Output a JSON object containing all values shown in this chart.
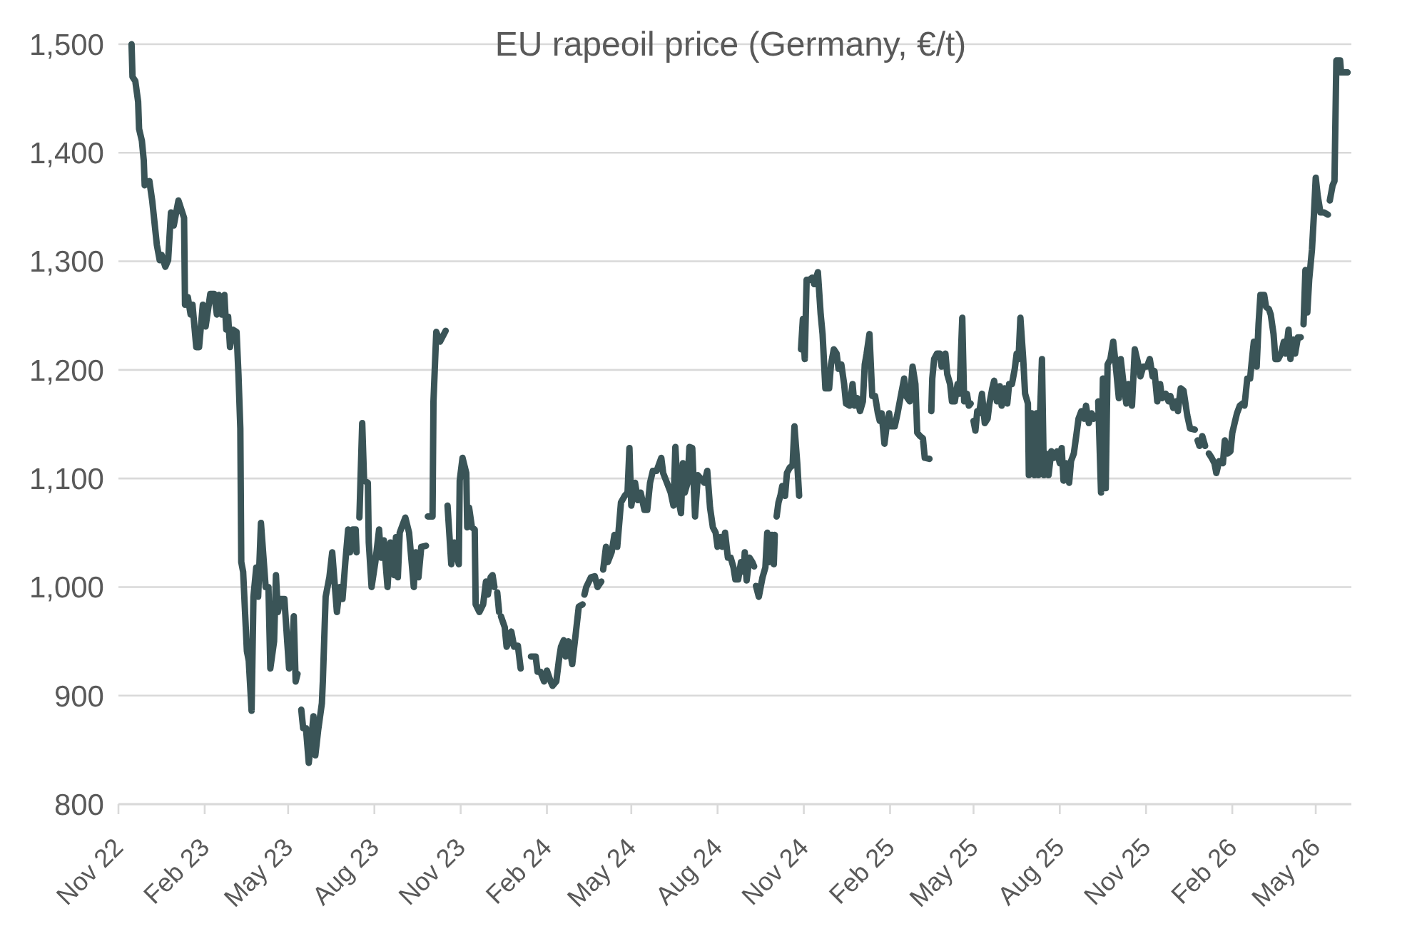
{
  "chart_data": {
    "type": "line",
    "title": "EU rapeoil price (Germany, €/t)",
    "color": "#3a5457",
    "grid": "y",
    "xlim": [
      "2022-11-01",
      "2026-06-08"
    ],
    "xticks": [
      {
        "value": "2022-11-01",
        "label": "Nov 22"
      },
      {
        "value": "2023-02-01",
        "label": "Feb 23"
      },
      {
        "value": "2023-05-01",
        "label": "May 23"
      },
      {
        "value": "2023-08-01",
        "label": "Aug 23"
      },
      {
        "value": "2023-11-01",
        "label": "Nov 23"
      },
      {
        "value": "2024-02-01",
        "label": "Feb 24"
      },
      {
        "value": "2024-05-01",
        "label": "May 24"
      },
      {
        "value": "2024-08-01",
        "label": "Aug 24"
      },
      {
        "value": "2024-11-01",
        "label": "Nov 24"
      },
      {
        "value": "2025-02-01",
        "label": "Feb 25"
      },
      {
        "value": "2025-05-01",
        "label": "May 25"
      },
      {
        "value": "2025-08-01",
        "label": "Aug 25"
      },
      {
        "value": "2025-11-01",
        "label": "Nov 25"
      },
      {
        "value": "2026-02-01",
        "label": "Feb 26"
      },
      {
        "value": "2026-05-01",
        "label": "May 26"
      }
    ],
    "ylim": [
      800,
      1500
    ],
    "yticks": [
      800,
      900,
      {
        "value": 1000,
        "label": "1,000"
      },
      {
        "value": 1100,
        "label": "1,100"
      },
      {
        "value": 1200,
        "label": "1,200"
      },
      {
        "value": 1300,
        "label": "1,300"
      },
      {
        "value": 1400,
        "label": "1,400"
      },
      {
        "value": 1500,
        "label": "1,500"
      }
    ],
    "x": [
      "2022-11-15",
      "2022-11-16",
      "2022-11-19",
      "2022-11-22",
      "2022-11-23",
      "2022-11-26",
      "2022-11-28",
      "2022-11-29",
      "2022-12-04",
      "2022-12-07",
      "2022-12-12",
      "2022-12-15",
      "2022-12-17",
      "2022-12-21",
      "2022-12-24",
      "2022-12-27",
      "2022-12-30",
      "2023-01-04",
      "2023-01-10",
      "2023-01-11",
      "2023-01-14",
      "2023-01-17",
      "2023-01-19",
      "2023-01-23",
      "2023-01-26",
      "2023-01-30",
      "2023-02-02",
      "2023-02-07",
      "2023-02-11",
      "2023-02-14",
      "2023-02-16",
      "2023-02-19",
      "2023-02-22",
      "2023-02-24",
      "2023-02-26",
      "2023-02-28",
      "2023-03-03",
      "2023-03-07",
      "2023-03-09",
      "2023-03-11",
      "2023-03-12",
      "2023-03-14",
      "2023-03-18",
      "2023-03-20",
      "2023-03-23",
      "2023-03-25",
      "2023-03-28",
      "2023-03-30",
      "2023-04-02",
      "2023-04-07",
      "2023-04-10",
      "2023-04-12",
      "2023-04-16",
      "2023-04-18",
      "2023-04-20",
      "2023-04-23",
      "2023-04-27",
      "2023-04-30",
      "2023-05-02",
      "2023-05-05",
      "2023-05-07",
      "2023-05-09",
      "2023-05-11",
      "2023-05-13",
      "2023-05-15",
      "2023-05-17",
      "2023-05-20",
      "2023-05-23",
      "2023-05-25",
      "2023-05-28",
      "2023-05-30",
      "2023-06-02",
      "2023-06-06",
      "2023-06-07",
      "2023-06-10",
      "2023-06-14",
      "2023-06-17",
      "2023-06-22",
      "2023-06-25",
      "2023-06-28",
      "2023-07-01",
      "2023-07-04",
      "2023-07-06",
      "2023-07-09",
      "2023-07-12",
      "2023-07-13",
      "2023-07-14",
      "2023-07-16",
      "2023-07-19",
      "2023-07-21",
      "2023-07-25",
      "2023-07-26",
      "2023-07-29",
      "2023-08-02",
      "2023-08-06",
      "2023-08-08",
      "2023-08-11",
      "2023-08-15",
      "2023-08-18",
      "2023-08-22",
      "2023-08-24",
      "2023-08-26",
      "2023-08-28",
      "2023-08-31",
      "2023-09-03",
      "2023-09-07",
      "2023-09-12",
      "2023-09-14",
      "2023-09-17",
      "2023-09-20",
      "2023-09-25",
      "2023-09-26",
      "2023-09-27",
      "2023-10-02",
      "2023-10-03",
      "2023-10-06",
      "2023-10-10",
      "2023-10-16",
      "2023-10-17",
      "2023-10-18",
      "2023-10-22",
      "2023-10-25",
      "2023-10-30",
      "2023-10-31",
      "2023-11-03",
      "2023-11-07",
      "2023-11-08",
      "2023-11-10",
      "2023-11-13",
      "2023-11-16",
      "2023-11-17",
      "2023-11-21",
      "2023-11-25",
      "2023-11-28",
      "2023-11-30",
      "2023-12-03",
      "2023-12-05",
      "2023-12-07",
      "2023-12-08",
      "2023-12-10",
      "2023-12-12",
      "2023-12-13",
      "2023-12-14",
      "2023-12-18",
      "2023-12-20",
      "2023-12-23",
      "2023-12-25",
      "2023-12-28",
      "2024-01-01",
      "2024-01-04",
      "2024-01-06",
      "2024-01-15",
      "2024-01-20",
      "2024-01-22",
      "2024-01-25",
      "2024-01-29",
      "2024-02-01",
      "2024-02-05",
      "2024-02-07",
      "2024-02-11",
      "2024-02-14",
      "2024-02-16",
      "2024-02-19",
      "2024-02-21",
      "2024-02-24",
      "2024-02-28",
      "2024-03-03",
      "2024-03-06",
      "2024-03-10",
      "2024-03-11",
      "2024-03-12",
      "2024-03-14",
      "2024-03-19",
      "2024-03-23",
      "2024-03-26",
      "2024-03-30",
      "2024-03-31",
      "2024-04-01",
      "2024-04-04",
      "2024-04-06",
      "2024-04-10",
      "2024-04-13",
      "2024-04-16",
      "2024-04-20",
      "2024-04-24",
      "2024-04-27",
      "2024-04-29",
      "2024-05-01",
      "2024-05-05",
      "2024-05-08",
      "2024-05-11",
      "2024-05-15",
      "2024-05-18",
      "2024-05-21",
      "2024-05-24",
      "2024-05-28",
      "2024-06-02",
      "2024-06-04",
      "2024-06-08",
      "2024-06-12",
      "2024-06-15",
      "2024-06-17",
      "2024-06-20",
      "2024-06-23",
      "2024-06-25",
      "2024-06-27",
      "2024-06-30",
      "2024-07-02",
      "2024-07-05",
      "2024-07-08",
      "2024-07-11",
      "2024-07-14",
      "2024-07-18",
      "2024-07-21",
      "2024-07-24",
      "2024-07-27",
      "2024-07-30",
      "2024-08-01",
      "2024-08-04",
      "2024-08-06",
      "2024-08-09",
      "2024-08-12",
      "2024-08-15",
      "2024-08-18",
      "2024-08-20",
      "2024-08-23",
      "2024-08-26",
      "2024-08-29",
      "2024-08-30",
      "2024-09-01",
      "2024-09-04",
      "2024-09-07",
      "2024-09-09",
      "2024-09-10",
      "2024-09-11",
      "2024-09-14",
      "2024-09-18",
      "2024-09-21",
      "2024-09-23",
      "2024-09-25",
      "2024-09-28",
      "2024-09-30",
      "2024-10-01",
      "2024-10-02",
      "2024-10-03",
      "2024-10-05",
      "2024-10-07",
      "2024-10-09",
      "2024-10-12",
      "2024-10-14",
      "2024-10-17",
      "2024-10-20",
      "2024-10-22",
      "2024-10-25",
      "2024-10-27",
      "2024-10-28",
      "2024-10-29",
      "2024-10-31",
      "2024-11-02",
      "2024-11-04",
      "2024-11-07",
      "2024-11-10",
      "2024-11-12",
      "2024-11-16",
      "2024-11-19",
      "2024-11-21",
      "2024-11-24",
      "2024-11-28",
      "2024-11-30",
      "2024-12-03",
      "2024-12-06",
      "2024-12-08",
      "2024-12-11",
      "2024-12-14",
      "2024-12-16",
      "2024-12-20",
      "2024-12-23",
      "2024-12-25",
      "2024-12-28",
      "2024-12-31",
      "2025-01-03",
      "2025-01-05",
      "2025-01-07",
      "2025-01-10",
      "2025-01-13",
      "2025-01-16",
      "2025-01-19",
      "2025-01-21",
      "2025-01-23",
      "2025-01-26",
      "2025-01-28",
      "2025-01-31",
      "2025-02-02",
      "2025-02-06",
      "2025-02-09",
      "2025-02-12",
      "2025-02-16",
      "2025-02-18",
      "2025-02-22",
      "2025-02-25",
      "2025-02-28",
      "2025-03-02",
      "2025-03-05",
      "2025-03-08",
      "2025-03-10",
      "2025-03-15",
      "2025-03-16",
      "2025-03-17",
      "2025-03-18",
      "2025-03-20",
      "2025-03-23",
      "2025-03-26",
      "2025-03-28",
      "2025-04-01",
      "2025-04-03",
      "2025-04-06",
      "2025-04-08",
      "2025-04-11",
      "2025-04-14",
      "2025-04-16",
      "2025-04-19",
      "2025-04-21",
      "2025-04-24",
      "2025-04-26",
      "2025-04-28",
      "2025-04-29",
      "2025-05-01",
      "2025-05-03",
      "2025-05-05",
      "2025-05-07",
      "2025-05-10",
      "2025-05-13",
      "2025-05-16",
      "2025-05-18",
      "2025-05-21",
      "2025-05-23",
      "2025-05-26",
      "2025-05-29",
      "2025-05-31",
      "2025-06-03",
      "2025-06-06",
      "2025-06-08",
      "2025-06-11",
      "2025-06-14",
      "2025-06-16",
      "2025-06-18",
      "2025-06-20",
      "2025-06-23",
      "2025-06-25",
      "2025-06-28",
      "2025-06-29",
      "2025-07-02",
      "2025-07-05",
      "2025-07-07",
      "2025-07-09",
      "2025-07-11",
      "2025-07-13",
      "2025-07-15",
      "2025-07-17",
      "2025-07-20",
      "2025-07-23",
      "2025-07-26",
      "2025-07-29",
      "2025-08-01",
      "2025-08-03",
      "2025-08-05",
      "2025-08-08",
      "2025-08-11",
      "2025-08-13",
      "2025-08-16",
      "2025-08-19",
      "2025-08-21",
      "2025-08-24",
      "2025-08-27",
      "2025-08-29",
      "2025-09-01",
      "2025-09-04",
      "2025-09-06",
      "2025-09-09",
      "2025-09-10",
      "2025-09-11",
      "2025-09-14",
      "2025-09-16",
      "2025-09-19",
      "2025-09-21",
      "2025-09-24",
      "2025-09-27",
      "2025-09-29",
      "2025-10-03",
      "2025-10-05",
      "2025-10-08",
      "2025-10-11",
      "2025-10-13",
      "2025-10-17",
      "2025-10-20",
      "2025-10-23",
      "2025-10-26",
      "2025-10-29",
      "2025-11-02",
      "2025-11-05",
      "2025-11-08",
      "2025-11-10",
      "2025-11-13",
      "2025-11-16",
      "2025-11-18",
      "2025-11-22",
      "2025-11-25",
      "2025-11-27",
      "2025-11-30",
      "2025-12-03",
      "2025-12-05",
      "2025-12-08",
      "2025-12-11",
      "2025-12-15",
      "2025-12-18",
      "2025-12-23",
      "2025-12-24",
      "2025-12-26",
      "2025-12-28",
      "2025-12-31",
      "2026-01-03",
      "2026-01-04",
      "2026-01-07",
      "2026-01-10",
      "2026-01-13",
      "2026-01-15",
      "2026-01-18",
      "2026-01-22",
      "2026-01-24",
      "2026-01-27",
      "2026-01-30",
      "2026-02-01",
      "2026-02-04",
      "2026-02-06",
      "2026-02-09",
      "2026-02-12",
      "2026-02-14",
      "2026-02-17",
      "2026-02-20",
      "2026-02-22",
      "2026-02-24",
      "2026-02-27",
      "2026-03-01",
      "2026-03-03",
      "2026-03-07",
      "2026-03-09",
      "2026-03-12",
      "2026-03-14",
      "2026-03-17",
      "2026-03-19",
      "2026-03-22",
      "2026-03-25",
      "2026-03-28",
      "2026-03-30",
      "2026-04-02",
      "2026-04-04",
      "2026-04-07",
      "2026-04-09",
      "2026-04-12",
      "2026-04-15",
      "2026-04-16",
      "2026-04-18",
      "2026-04-20",
      "2026-04-22",
      "2026-04-24",
      "2026-04-27",
      "2026-04-29",
      "2026-05-01",
      "2026-05-03",
      "2026-05-06",
      "2026-05-10",
      "2026-05-14",
      "2026-05-15",
      "2026-05-16",
      "2026-05-19",
      "2026-05-21",
      "2026-05-23",
      "2026-05-27",
      "2026-05-28",
      "2026-06-04"
    ],
    "values": [
      1500,
      1470,
      1466,
      1447,
      1422,
      1411,
      1393,
      1370,
      1374,
      1356,
      1315,
      1301,
      1306,
      1295,
      1301,
      1345,
      1333,
      1356,
      1340,
      1260,
      1267,
      1251,
      1260,
      1221,
      1221,
      1260,
      1240,
      1270,
      1270,
      1251,
      1269,
      1251,
      1269,
      1237,
      1249,
      1221,
      1237,
      1235,
      1196,
      1146,
      1023,
      1014,
      941,
      932,
      886,
      991,
      1018,
      991,
      1059,
      1000,
      1000,
      925,
      950,
      1011,
      977,
      989,
      989,
      950,
      925,
      936,
      973,
      913,
      920,
      null,
      887,
      870,
      870,
      838,
      854,
      881,
      845,
      868,
      893,
      913,
      991,
      1009,
      1032,
      977,
      1000,
      989,
      1023,
      1053,
      1032,
      1053,
      1053,
      1032,
      null,
      1064,
      1151,
      1098,
      1096,
      1041,
      1000,
      1023,
      1053,
      1027,
      1043,
      1000,
      1041,
      1011,
      1046,
      1009,
      1050,
      1057,
      1064,
      1050,
      1000,
      1032,
      1009,
      1037,
      1038,
      null,
      1065,
      1065,
      1171,
      1235,
      1226,
      1236,
      null,
      1075,
      1021,
      1041,
      1021,
      1098,
      1119,
      1105,
      1055,
      1073,
      1055,
      1053,
      984,
      977,
      984,
      1005,
      993,
      1009,
      1011,
      1000,
      null,
      995,
      977,
      null,
      973,
      963,
      945,
      950,
      959,
      945,
      946,
      925,
      null,
      936,
      936,
      922,
      922,
      913,
      923,
      913,
      909,
      913,
      934,
      945,
      951,
      936,
      950,
      929,
      959,
      982,
      984,
      null,
      993,
      1000,
      1009,
      1010,
      1000,
      1005,
      null,
      1016,
      1037,
      1023,
      1032,
      1048,
      1037,
      1078,
      1084,
      1087,
      1128,
      1075,
      1096,
      1080,
      1087,
      1071,
      1071,
      1096,
      1107,
      1107,
      1119,
      1105,
      1096,
      1087,
      1075,
      1129,
      1082,
      1068,
      1114,
      1087,
      1096,
      1129,
      1128,
      1065,
      1103,
      1100,
      1096,
      1107,
      1073,
      1055,
      1050,
      1037,
      1046,
      1037,
      1050,
      1027,
      1027,
      1018,
      1007,
      1007,
      1023,
      1014,
      1032,
      1006,
      1027,
      1023,
      1019,
      null,
      1001,
      991,
      1009,
      1018,
      1050,
      1023,
      1048,
      1021,
      1048,
      null,
      1065,
      1078,
      1084,
      1093,
      1084,
      1105,
      1110,
      1112,
      1148,
      1114,
      1084,
      null,
      1219,
      1247,
      1210,
      1283,
      1283,
      1285,
      1279,
      1290,
      1251,
      1233,
      1183,
      1183,
      1205,
      1219,
      1215,
      1201,
      1205,
      1187,
      1169,
      1167,
      1187,
      1167,
      1174,
      1162,
      1171,
      1205,
      1215,
      1233,
      1176,
      1176,
      1160,
      1153,
      1160,
      1132,
      1146,
      1160,
      1148,
      1148,
      1160,
      1174,
      1192,
      1176,
      1171,
      1203,
      1187,
      1142,
      1139,
      1137,
      1119,
      1118,
      null,
      1162,
      1192,
      1210,
      1215,
      1215,
      1203,
      1215,
      1196,
      1187,
      1171,
      1171,
      1187,
      1178,
      1248,
      1171,
      1178,
      1167,
      1169,
      null,
      1153,
      1144,
      1162,
      1160,
      1178,
      1151,
      1155,
      1169,
      1183,
      1190,
      1171,
      1185,
      1167,
      1183,
      1169,
      1187,
      1187,
      1201,
      1215,
      1210,
      1248,
      1210,
      1178,
      1169,
      1103,
      1160,
      1103,
      1160,
      1103,
      1160,
      1210,
      1103,
      1123,
      1103,
      1125,
      1119,
      1125,
      1114,
      1128,
      1098,
      1114,
      1096,
      1116,
      1123,
      1142,
      1155,
      1162,
      1155,
      1167,
      1151,
      1160,
      1155,
      1158,
      null,
      1171,
      1087,
      1192,
      1091,
      1205,
      1210,
      1226,
      1210,
      1174,
      1210,
      1187,
      1169,
      1187,
      1167,
      1219,
      1208,
      1194,
      1203,
      1203,
      1210,
      1194,
      1199,
      1171,
      1187,
      1174,
      1178,
      1171,
      1176,
      1165,
      1171,
      1162,
      1183,
      1181,
      1158,
      1146,
      1145,
      null,
      1135,
      1130,
      1139,
      1130,
      null,
      1123,
      1119,
      1114,
      1105,
      1116,
      1114,
      1135,
      1123,
      1125,
      1142,
      1153,
      1160,
      1167,
      1169,
      1167,
      1192,
      1192,
      1210,
      1226,
      1203,
      1242,
      1269,
      1269,
      1258,
      1256,
      1251,
      1233,
      1210,
      1210,
      1215,
      1226,
      1215,
      1237,
      1210,
      1228,
      1215,
      1230,
      1230,
      null,
      1242,
      1292,
      1253,
      1283,
      1311,
      1342,
      1377,
      1361,
      1345,
      1345,
      1343,
      null,
      1356,
      1370,
      1374,
      1485,
      1485,
      1474,
      1474
    ]
  }
}
